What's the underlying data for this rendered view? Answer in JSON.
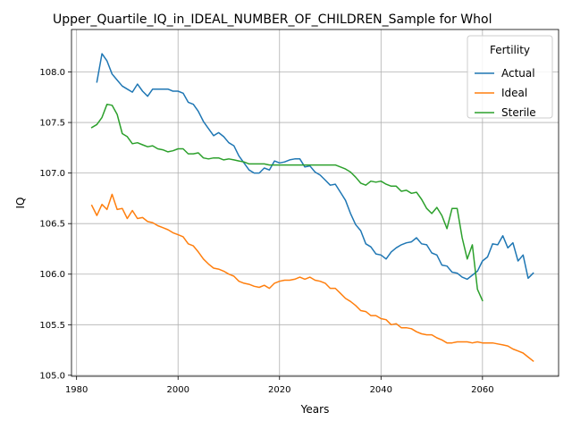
{
  "chart_data": {
    "type": "line",
    "title": "Upper_Quartile_IQ_in_IDEAL_NUMBER_OF_CHILDREN_Sample for Whol",
    "xlabel": "Years",
    "ylabel": "IQ",
    "xlim": [
      1979,
      2075
    ],
    "ylim": [
      104.99,
      108.42
    ],
    "xticks": [
      1980,
      2000,
      2020,
      2040,
      2060
    ],
    "yticks": [
      105.0,
      105.5,
      106.0,
      106.5,
      107.0,
      107.5,
      108.0
    ],
    "xtick_labels": [
      "1980",
      "2000",
      "2020",
      "2040",
      "2060"
    ],
    "ytick_labels": [
      "105.0",
      "105.5",
      "106.0",
      "106.5",
      "107.0",
      "107.5",
      "108.0"
    ],
    "grid": true,
    "legend": {
      "title": "Fertility",
      "position": "top-right"
    },
    "series": [
      {
        "name": "Actual",
        "color": "#1f77b4",
        "x": [
          1984,
          1985,
          1986,
          1987,
          1988,
          1989,
          1990,
          1991,
          1992,
          1993,
          1994,
          1995,
          1996,
          1997,
          1998,
          1999,
          2000,
          2001,
          2002,
          2003,
          2004,
          2005,
          2006,
          2007,
          2008,
          2009,
          2010,
          2011,
          2012,
          2013,
          2014,
          2015,
          2016,
          2017,
          2018,
          2019,
          2020,
          2021,
          2022,
          2023,
          2024,
          2025,
          2026,
          2027,
          2028,
          2029,
          2030,
          2031,
          2032,
          2033,
          2034,
          2035,
          2036,
          2037,
          2038,
          2039,
          2040,
          2041,
          2042,
          2043,
          2044,
          2045,
          2046,
          2047,
          2048,
          2049,
          2050,
          2051,
          2052,
          2053,
          2054,
          2055,
          2056,
          2057,
          2058,
          2059,
          2060,
          2061,
          2062,
          2063,
          2064,
          2065,
          2066,
          2067,
          2068,
          2069,
          2070
        ],
        "y": [
          107.9,
          108.18,
          108.11,
          107.98,
          107.92,
          107.86,
          107.83,
          107.8,
          107.88,
          107.81,
          107.76,
          107.83,
          107.83,
          107.83,
          107.83,
          107.81,
          107.81,
          107.79,
          107.7,
          107.68,
          107.61,
          107.51,
          107.44,
          107.37,
          107.4,
          107.36,
          107.3,
          107.27,
          107.17,
          107.1,
          107.03,
          107.0,
          107.0,
          107.05,
          107.03,
          107.12,
          107.1,
          107.11,
          107.13,
          107.14,
          107.14,
          107.06,
          107.07,
          107.01,
          106.98,
          106.93,
          106.88,
          106.89,
          106.81,
          106.73,
          106.6,
          106.49,
          106.43,
          106.3,
          106.27,
          106.2,
          106.19,
          106.15,
          106.22,
          106.26,
          106.29,
          106.31,
          106.32,
          106.36,
          106.3,
          106.29,
          106.21,
          106.19,
          106.09,
          106.08,
          106.02,
          106.01,
          105.97,
          105.95,
          105.99,
          106.03,
          106.13,
          106.17,
          106.3,
          106.29,
          106.38,
          106.26,
          106.31,
          106.13,
          106.19,
          105.96,
          106.01
        ]
      },
      {
        "name": "Ideal",
        "color": "#ff7f0e",
        "x": [
          1983,
          1984,
          1985,
          1986,
          1987,
          1988,
          1989,
          1990,
          1991,
          1992,
          1993,
          1994,
          1995,
          1996,
          1997,
          1998,
          1999,
          2000,
          2001,
          2002,
          2003,
          2004,
          2005,
          2006,
          2007,
          2008,
          2009,
          2010,
          2011,
          2012,
          2013,
          2014,
          2015,
          2016,
          2017,
          2018,
          2019,
          2020,
          2021,
          2022,
          2023,
          2024,
          2025,
          2026,
          2027,
          2028,
          2029,
          2030,
          2031,
          2032,
          2033,
          2034,
          2035,
          2036,
          2037,
          2038,
          2039,
          2040,
          2041,
          2042,
          2043,
          2044,
          2045,
          2046,
          2047,
          2048,
          2049,
          2050,
          2051,
          2052,
          2053,
          2054,
          2055,
          2056,
          2057,
          2058,
          2059,
          2060,
          2061,
          2062,
          2063,
          2064,
          2065,
          2066,
          2067,
          2068,
          2069,
          2070
        ],
        "y": [
          106.68,
          106.58,
          106.69,
          106.64,
          106.79,
          106.64,
          106.65,
          106.55,
          106.63,
          106.55,
          106.56,
          106.52,
          106.51,
          106.48,
          106.46,
          106.44,
          106.41,
          106.39,
          106.37,
          106.3,
          106.28,
          106.22,
          106.15,
          106.1,
          106.06,
          106.05,
          106.03,
          106.0,
          105.98,
          105.93,
          105.91,
          105.9,
          105.88,
          105.87,
          105.89,
          105.86,
          105.91,
          105.93,
          105.94,
          105.94,
          105.95,
          105.97,
          105.95,
          105.97,
          105.94,
          105.93,
          105.91,
          105.86,
          105.86,
          105.81,
          105.76,
          105.73,
          105.69,
          105.64,
          105.63,
          105.59,
          105.59,
          105.56,
          105.55,
          105.5,
          105.51,
          105.47,
          105.47,
          105.46,
          105.43,
          105.41,
          105.4,
          105.4,
          105.37,
          105.35,
          105.32,
          105.32,
          105.33,
          105.33,
          105.33,
          105.32,
          105.33,
          105.32,
          105.32,
          105.32,
          105.31,
          105.3,
          105.29,
          105.26,
          105.24,
          105.22,
          105.18,
          105.14
        ],
        "y_last": 105.14
      },
      {
        "name": "Sterile",
        "color": "#2ca02c",
        "x": [
          1983,
          1984,
          1985,
          1986,
          1987,
          1988,
          1989,
          1990,
          1991,
          1992,
          1993,
          1994,
          1995,
          1996,
          1997,
          1998,
          1999,
          2000,
          2001,
          2002,
          2003,
          2004,
          2005,
          2006,
          2007,
          2008,
          2009,
          2010,
          2011,
          2012,
          2013,
          2014,
          2015,
          2016,
          2017,
          2018,
          2019,
          2020,
          2021,
          2022,
          2023,
          2024,
          2025,
          2026,
          2027,
          2028,
          2029,
          2030,
          2031,
          2032,
          2033,
          2034,
          2035,
          2036,
          2037,
          2038,
          2039,
          2040,
          2041,
          2042,
          2043,
          2044,
          2045,
          2046,
          2047,
          2048,
          2049,
          2050,
          2051,
          2052,
          2053,
          2054,
          2055,
          2056,
          2057,
          2058,
          2059,
          2060
        ],
        "y": [
          107.45,
          107.48,
          107.55,
          107.68,
          107.67,
          107.58,
          107.39,
          107.36,
          107.29,
          107.3,
          107.28,
          107.26,
          107.27,
          107.24,
          107.23,
          107.21,
          107.22,
          107.24,
          107.24,
          107.19,
          107.19,
          107.2,
          107.15,
          107.14,
          107.15,
          107.15,
          107.13,
          107.14,
          107.13,
          107.12,
          107.11,
          107.09,
          107.09,
          107.09,
          107.09,
          107.08,
          107.08,
          107.08,
          107.08,
          107.08,
          107.08,
          107.08,
          107.08,
          107.08,
          107.08,
          107.08,
          107.08,
          107.08,
          107.08,
          107.06,
          107.04,
          107.01,
          106.96,
          106.9,
          106.88,
          106.92,
          106.91,
          106.92,
          106.89,
          106.87,
          106.87,
          106.82,
          106.83,
          106.8,
          106.81,
          106.74,
          106.65,
          106.6,
          106.66,
          106.58,
          106.45,
          106.65,
          106.65,
          106.36,
          106.15,
          106.29,
          105.85,
          105.74
        ]
      }
    ]
  }
}
